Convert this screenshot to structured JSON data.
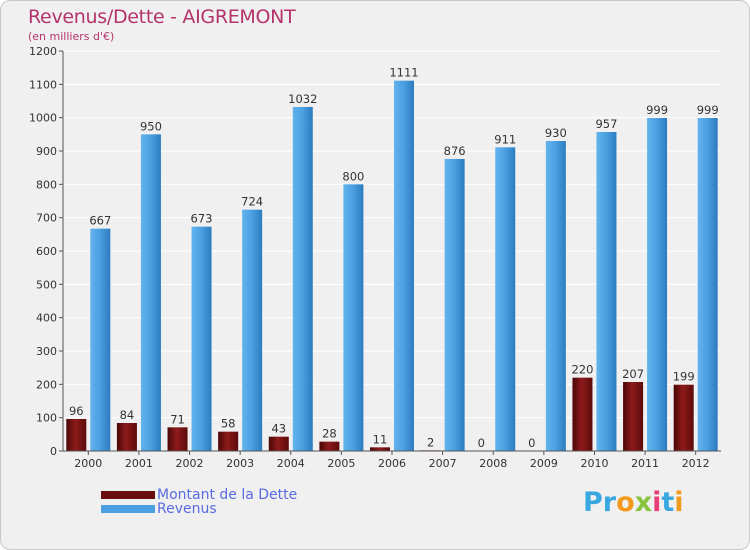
{
  "title": "Revenus/Dette - AIGREMONT",
  "subtitle": "(en milliers d'€)",
  "legend": [
    {
      "label": "Montant de la Dette",
      "color": "#7a1212"
    },
    {
      "label": "Revenus",
      "color": "#4a9fe0"
    }
  ],
  "logo": {
    "text": "Proxiti",
    "letters": [
      {
        "ch": "P",
        "color": "#3aa8e0"
      },
      {
        "ch": "r",
        "color": "#3aa8e0"
      },
      {
        "ch": "o",
        "color": "#f39a1e"
      },
      {
        "ch": "x",
        "color": "#8ac43f"
      },
      {
        "ch": "i",
        "color": "#e63f7a"
      },
      {
        "ch": "t",
        "color": "#3aa8e0"
      },
      {
        "ch": "i",
        "color": "#f39a1e"
      }
    ]
  },
  "chart_data": {
    "type": "bar",
    "categories": [
      "2000",
      "2001",
      "2002",
      "2003",
      "2004",
      "2005",
      "2006",
      "2007",
      "2008",
      "2009",
      "2010",
      "2011",
      "2012"
    ],
    "series": [
      {
        "name": "Montant de la Dette",
        "color": "#7a1212",
        "values": [
          96,
          84,
          71,
          58,
          43,
          28,
          11,
          2,
          0,
          0,
          220,
          207,
          199
        ]
      },
      {
        "name": "Revenus",
        "color": "#4a9fe0",
        "values": [
          667,
          950,
          673,
          724,
          1032,
          800,
          1111,
          876,
          911,
          930,
          957,
          999,
          999
        ]
      }
    ],
    "yticks": [
      0,
      100,
      200,
      300,
      400,
      500,
      600,
      700,
      800,
      900,
      1000,
      1100,
      1200
    ],
    "ylim": [
      0,
      1200
    ],
    "grid": true,
    "legend_position": "bottom-left"
  }
}
